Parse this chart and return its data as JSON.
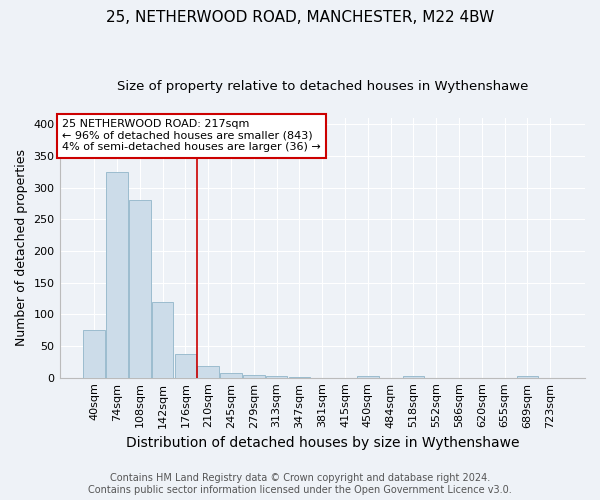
{
  "title1": "25, NETHERWOOD ROAD, MANCHESTER, M22 4BW",
  "title2": "Size of property relative to detached houses in Wythenshawe",
  "xlabel": "Distribution of detached houses by size in Wythenshawe",
  "ylabel": "Number of detached properties",
  "categories": [
    "40sqm",
    "74sqm",
    "108sqm",
    "142sqm",
    "176sqm",
    "210sqm",
    "245sqm",
    "279sqm",
    "313sqm",
    "347sqm",
    "381sqm",
    "415sqm",
    "450sqm",
    "484sqm",
    "518sqm",
    "552sqm",
    "586sqm",
    "620sqm",
    "655sqm",
    "689sqm",
    "723sqm"
  ],
  "values": [
    75,
    325,
    280,
    120,
    37,
    18,
    8,
    5,
    3,
    1,
    0,
    0,
    3,
    0,
    3,
    0,
    0,
    0,
    0,
    3,
    0
  ],
  "bar_color": "#ccdce9",
  "bar_edge_color": "#9bbcce",
  "background_color": "#eef2f7",
  "grid_color": "#ffffff",
  "annotation_line1": "25 NETHERWOOD ROAD: 217sqm",
  "annotation_line2": "← 96% of detached houses are smaller (843)",
  "annotation_line3": "4% of semi-detached houses are larger (36) →",
  "annotation_box_facecolor": "#ffffff",
  "annotation_box_edgecolor": "#cc0000",
  "red_line_color": "#cc0000",
  "footer1": "Contains HM Land Registry data © Crown copyright and database right 2024.",
  "footer2": "Contains public sector information licensed under the Open Government Licence v3.0.",
  "ylim": [
    0,
    410
  ],
  "yticks": [
    0,
    50,
    100,
    150,
    200,
    250,
    300,
    350,
    400
  ],
  "title1_fontsize": 11,
  "title2_fontsize": 9.5,
  "xlabel_fontsize": 10,
  "ylabel_fontsize": 9,
  "tick_fontsize": 8,
  "footer_fontsize": 7,
  "annotation_fontsize": 8
}
